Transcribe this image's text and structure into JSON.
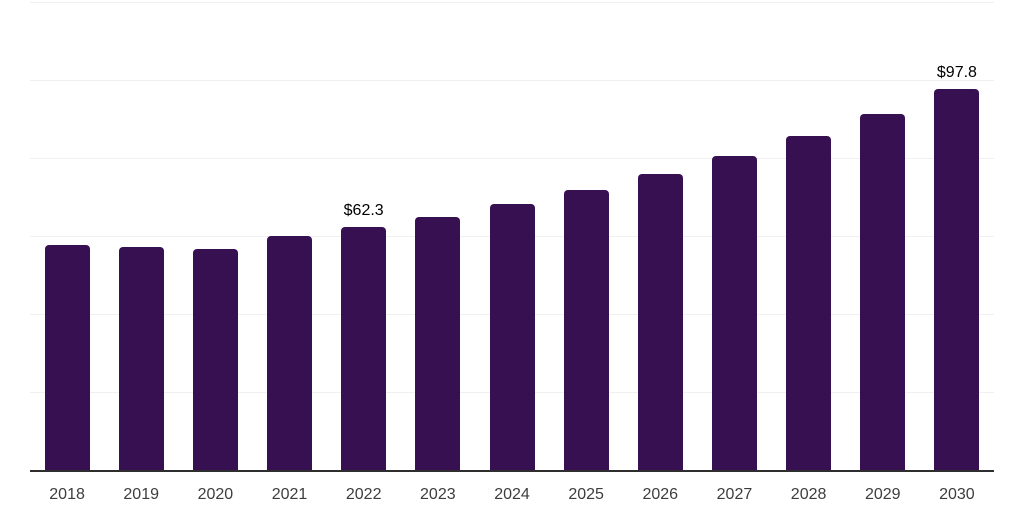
{
  "chart_data": {
    "type": "bar",
    "categories": [
      "2018",
      "2019",
      "2020",
      "2021",
      "2022",
      "2023",
      "2024",
      "2025",
      "2026",
      "2027",
      "2028",
      "2029",
      "2030"
    ],
    "values": [
      57.8,
      57.3,
      56.7,
      59.9,
      62.3,
      64.9,
      68.3,
      71.9,
      75.8,
      80.4,
      85.7,
      91.4,
      97.8
    ],
    "point_labels": {
      "2022": "$62.3",
      "2030": "$97.8"
    },
    "ylim": [
      0,
      120
    ],
    "grid_interval": 20,
    "grid": true,
    "legend": false,
    "colors": {
      "bar": "#371051",
      "gridline": "#f0f0f0",
      "axis_line": "#2e2e2e",
      "tick_label": "#3d3d3d",
      "value_label": "#000000"
    }
  }
}
